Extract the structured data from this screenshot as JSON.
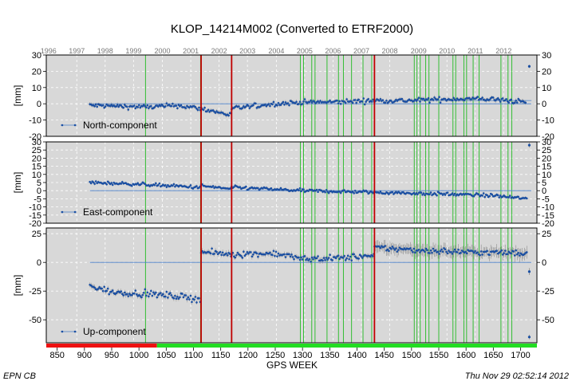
{
  "chart_data": {
    "type": "scatter",
    "title": "KLOP_14214M002 (Converted to ETRF2000)",
    "xlabel": "GPS WEEK",
    "xlim": [
      830,
      1730
    ],
    "x_ticks": [
      "850",
      "900",
      "950",
      "1000",
      "1050",
      "1100",
      "1150",
      "1200",
      "1250",
      "1300",
      "1350",
      "1400",
      "1450",
      "1500",
      "1550",
      "1600",
      "1650",
      "1700"
    ],
    "x_tick_values": [
      850,
      900,
      950,
      1000,
      1050,
      1100,
      1150,
      1200,
      1250,
      1300,
      1350,
      1400,
      1450,
      1500,
      1550,
      1600,
      1650,
      1700
    ],
    "years": [
      "1996",
      "1997",
      "1998",
      "1999",
      "2000",
      "2001",
      "2002",
      "2003",
      "2004",
      "2005",
      "2006",
      "2007",
      "2008",
      "2009",
      "2010",
      "2011",
      "2012"
    ],
    "year_weeks": [
      834,
      886,
      938,
      990,
      1043,
      1095,
      1147,
      1199,
      1252,
      1304,
      1356,
      1408,
      1460,
      1513,
      1565,
      1617,
      1669
    ],
    "discontinuities_red": [
      1114,
      1170,
      1432
    ],
    "events_green": [
      1012,
      1113,
      1296,
      1302,
      1317,
      1323,
      1345,
      1366,
      1375,
      1390,
      1411,
      1427,
      1505,
      1510,
      1516,
      1526,
      1532,
      1550,
      1576,
      1581,
      1596,
      1601,
      1613,
      1624,
      1664,
      1677,
      1684
    ],
    "availability_bar": [
      {
        "from": 830,
        "to": 1033,
        "color": "#ee1111",
        "status": "not available"
      },
      {
        "from": 1033,
        "to": 1730,
        "color": "#22dd22",
        "status": "available"
      }
    ],
    "panels": [
      {
        "name": "North-component",
        "ylabel": "[mm]",
        "ylim": [
          -20,
          30
        ],
        "y_ticks": [
          "-20",
          "-10",
          "0",
          "10",
          "20",
          "30"
        ],
        "y_tick_values": [
          -20,
          -10,
          0,
          10,
          20,
          30
        ],
        "trend": {
          "x": [
            910,
            1720
          ],
          "y": [
            0,
            0
          ]
        },
        "trend_right": {
          "x": [
            1500,
            1720
          ],
          "y": [
            2,
            2
          ]
        },
        "segments": [
          {
            "x": [
              910,
              1020,
              1070,
              1114
            ],
            "y": [
              -1,
              -2,
              -1,
              -3
            ]
          },
          {
            "x": [
              1114,
              1170
            ],
            "y": [
              -3,
              -7
            ]
          },
          {
            "x": [
              1170,
              1250,
              1300,
              1350,
              1432
            ],
            "y": [
              -3,
              0,
              1,
              1,
              2
            ]
          },
          {
            "x": [
              1432,
              1500,
              1580,
              1640,
              1710
            ],
            "y": [
              2,
              2,
              3,
              3,
              1
            ]
          }
        ],
        "noise": 1.4,
        "outliers": [
          {
            "x": 1716,
            "y": 23,
            "err": 1
          }
        ]
      },
      {
        "name": "East-component",
        "ylabel": "[mm]",
        "ylim": [
          -20,
          30
        ],
        "y_ticks": [
          "-20",
          "-15",
          "-10",
          "-5",
          "0",
          "5",
          "10",
          "15",
          "20",
          "25",
          "30"
        ],
        "y_tick_values": [
          -20,
          -15,
          -10,
          -5,
          0,
          5,
          10,
          15,
          20,
          25,
          30
        ],
        "trend": {
          "x": [
            910,
            1720
          ],
          "y": [
            0,
            0
          ]
        },
        "segments": [
          {
            "x": [
              910,
              1000,
              1114
            ],
            "y": [
              5,
              4,
              2
            ]
          },
          {
            "x": [
              1114,
              1170
            ],
            "y": [
              3,
              1
            ]
          },
          {
            "x": [
              1170,
              1300,
              1432
            ],
            "y": [
              2,
              0,
              -1
            ]
          },
          {
            "x": [
              1432,
              1550,
              1650,
              1712
            ],
            "y": [
              -1,
              -2,
              -3,
              -5
            ]
          }
        ],
        "noise": 1.0,
        "outliers": [
          {
            "x": 1716,
            "y": 28,
            "err": 1.5
          }
        ]
      },
      {
        "name": "Up-component",
        "ylabel": "[mm]",
        "ylim": [
          -70,
          30
        ],
        "y_ticks": [
          "-50",
          "-25",
          "0",
          "25"
        ],
        "y_tick_values": [
          -50,
          -25,
          0,
          25
        ],
        "trend": {
          "x": [
            910,
            1720
          ],
          "y": [
            0,
            0
          ]
        },
        "segments": [
          {
            "x": [
              910,
              950,
              1000,
              1060,
              1114
            ],
            "y": [
              -20,
              -26,
              -27,
              -29,
              -32
            ]
          },
          {
            "x": [
              1114,
              1170
            ],
            "y": [
              9,
              7
            ]
          },
          {
            "x": [
              1170,
              1250,
              1300,
              1380,
              1420
            ],
            "y": [
              7,
              8,
              3,
              4,
              6
            ]
          },
          {
            "x": [
              1420,
              1432
            ],
            "y": [
              5,
              5
            ]
          },
          {
            "x": [
              1432,
              1500,
              1600,
              1712
            ],
            "y": [
              13,
              11,
              9,
              8
            ]
          }
        ],
        "noise": 2.6,
        "outliers": [
          {
            "x": 1716,
            "y": -8,
            "err": 3
          },
          {
            "x": 1716,
            "y": -65,
            "err": 2
          }
        ]
      }
    ]
  },
  "footer": {
    "left": "EPN CB",
    "right": "Thu Nov 29 02:52:14 2012"
  },
  "colors": {
    "panel_bg": "#d8d8d8",
    "point": "#1a4fa3",
    "error_bar": "#8c8c8c",
    "trend": "#4a7fc8",
    "red_line": "#c00000",
    "green_line": "#22bb22",
    "grid": "#ffffff"
  }
}
